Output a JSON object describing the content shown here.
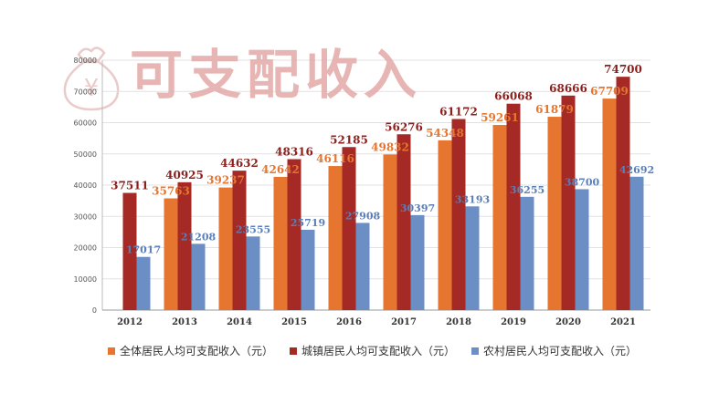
{
  "chart_data": {
    "type": "bar",
    "title": "可支配收入",
    "xlabel": "",
    "ylabel": "",
    "ylim": [
      0,
      80000
    ],
    "yticks": [
      0,
      10000,
      20000,
      30000,
      40000,
      50000,
      60000,
      70000,
      80000
    ],
    "categories": [
      "2012",
      "2013",
      "2014",
      "2015",
      "2016",
      "2017",
      "2018",
      "2019",
      "2020",
      "2021"
    ],
    "series": [
      {
        "name": "全体居民人均可支配收入（元）",
        "color": "#e6762f",
        "label_color": "#e6762f",
        "values": [
          null,
          35763,
          39237,
          42642,
          46116,
          49832,
          54348,
          59261,
          61879,
          67709
        ]
      },
      {
        "name": "城镇居民人均可支配收入（元）",
        "color": "#a52a25",
        "label_color": "#8b1f1c",
        "values": [
          37511,
          40925,
          44632,
          48316,
          52185,
          56276,
          61172,
          66068,
          68666,
          74700
        ]
      },
      {
        "name": "农村居民人均可支配收入（元）",
        "color": "#6b8fc4",
        "label_color": "#5a7fb8",
        "values": [
          17017,
          21208,
          23555,
          25719,
          27908,
          30397,
          33193,
          36255,
          38700,
          42692
        ]
      }
    ],
    "grid": true,
    "legend_position": "bottom"
  }
}
